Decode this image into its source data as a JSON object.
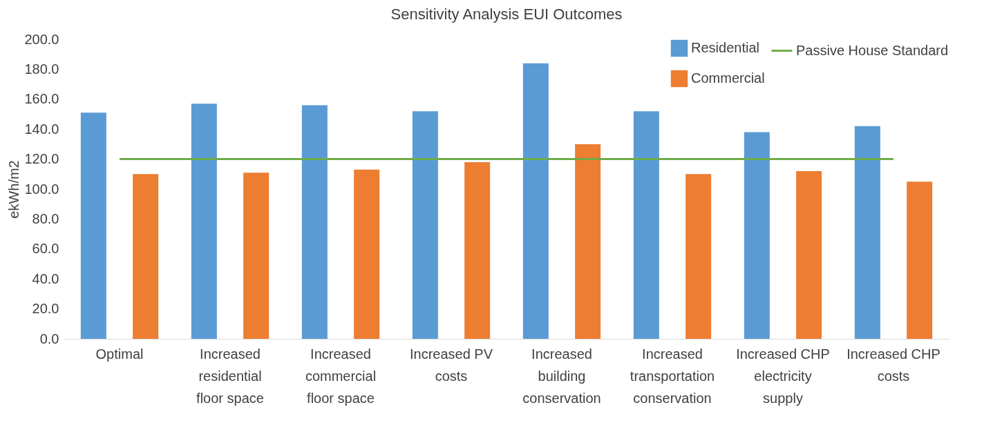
{
  "chart_data": {
    "type": "bar",
    "title": "Sensitivity Analysis EUI Outcomes",
    "ylabel": "ekWh/m2",
    "categories": [
      "Optimal",
      "Increased residential floor space",
      "Increased commercial floor space",
      "Increased PV costs",
      "Increased building conservation",
      "Increased transportation conservation",
      "Increased CHP electricity supply",
      "Increased CHP costs"
    ],
    "series": [
      {
        "name": "Residential",
        "color": "#5b9bd5",
        "values": [
          151,
          157,
          156,
          152,
          184,
          152,
          138,
          142
        ]
      },
      {
        "name": "Commercial",
        "color": "#ed7d31",
        "values": [
          110,
          111,
          113,
          118,
          130,
          110,
          112,
          105
        ]
      },
      {
        "name": "Passive House Standard",
        "type": "line",
        "color": "#70ad47",
        "values": [
          120,
          120,
          120,
          120,
          120,
          120,
          120,
          120
        ]
      }
    ],
    "ylim": [
      0,
      200
    ],
    "yticks": [
      {
        "value": 0,
        "label": "0.0"
      },
      {
        "value": 20,
        "label": "20.0"
      },
      {
        "value": 40,
        "label": "40.0"
      },
      {
        "value": 60,
        "label": "60.0"
      },
      {
        "value": 80,
        "label": "80.0"
      },
      {
        "value": 100,
        "label": "100.0"
      },
      {
        "value": 120,
        "label": "120.0"
      },
      {
        "value": 140,
        "label": "140.0"
      },
      {
        "value": 160,
        "label": "160.0"
      },
      {
        "value": 180,
        "label": "180.0"
      },
      {
        "value": 200,
        "label": "200.0"
      }
    ],
    "legend": "top right",
    "grid": false
  }
}
